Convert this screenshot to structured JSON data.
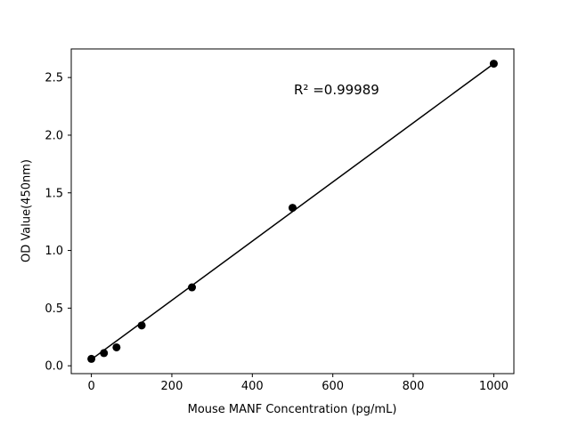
{
  "chart_data": {
    "type": "scatter",
    "title": "",
    "xlabel": "Mouse MANF Concentration (pg/mL)",
    "ylabel": "OD Value(450nm)",
    "annotation": "R² =0.99989",
    "x": [
      0,
      31.25,
      62.5,
      125,
      250,
      500,
      1000
    ],
    "y": [
      0.06,
      0.11,
      0.16,
      0.35,
      0.68,
      1.37,
      2.62
    ],
    "fit_line": {
      "x": [
        0,
        1000
      ],
      "y": [
        0.055,
        2.62
      ]
    },
    "xlim": [
      -50,
      1050
    ],
    "ylim": [
      -0.068,
      2.748
    ],
    "xticks": [
      0,
      200,
      400,
      600,
      800,
      1000
    ],
    "yticks": [
      0.0,
      0.5,
      1.0,
      1.5,
      2.0,
      2.5
    ],
    "grid": false,
    "legend": null,
    "marker_color": "#000000",
    "line_color": "#000000",
    "axis_color": "#000000",
    "background_color": "#ffffff"
  }
}
